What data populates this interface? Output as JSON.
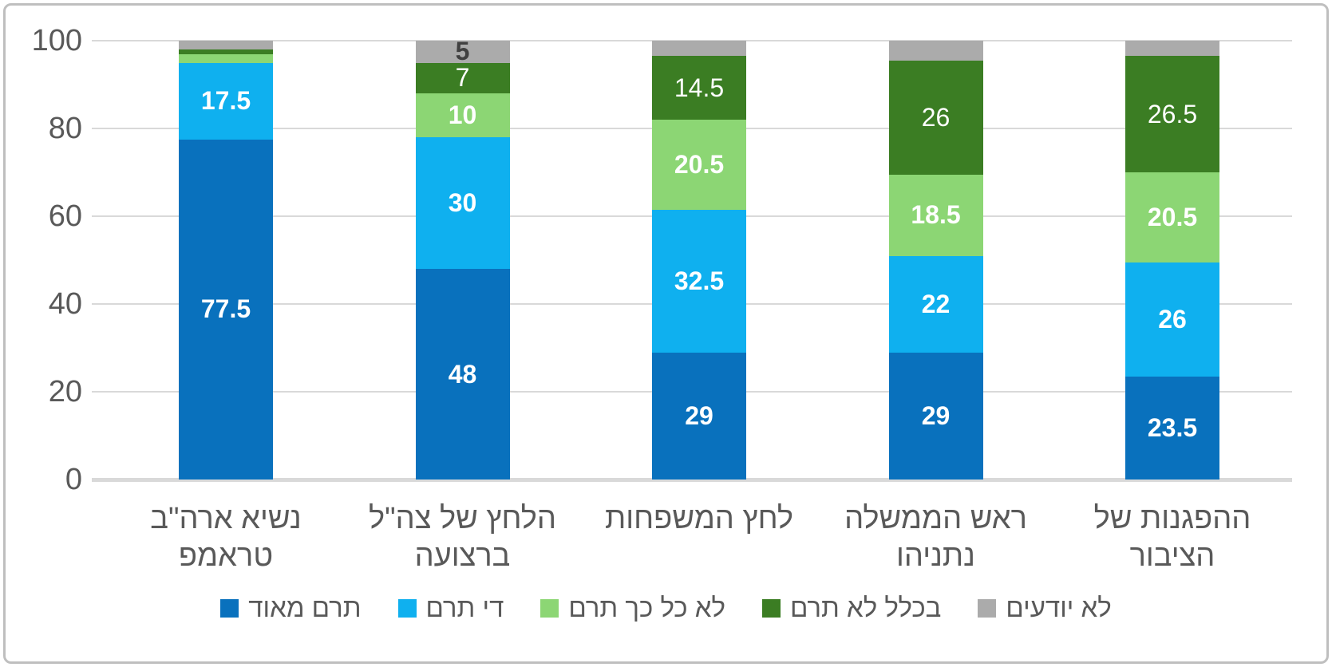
{
  "frame": {
    "background": "#FFFFFF",
    "border_color": "#BFBFBF"
  },
  "styles": {
    "grid_color": "#D9D9D9",
    "axis_text_color": "#595959",
    "value_label_color": "#FFFFFF",
    "value_label_dark_color": "#404040"
  },
  "chart_data": {
    "type": "bar",
    "stacked": true,
    "orientation": "vertical",
    "title": "",
    "xlabel": "",
    "ylabel": "",
    "ylim": [
      0,
      100
    ],
    "yticks": [
      0,
      20,
      40,
      60,
      80,
      100
    ],
    "grid": true,
    "legend_position": "bottom",
    "categories": [
      [
        "נשיא ארה\"ב",
        "טראמפ"
      ],
      [
        "הלחץ של צה\"ל",
        "ברצועה"
      ],
      [
        "לחץ המשפחות"
      ],
      [
        "ראש הממשלה",
        "נתניהו"
      ],
      [
        "ההפגנות של",
        "הציבור"
      ]
    ],
    "series": [
      {
        "name": "תרם מאוד",
        "color": "#0971BD",
        "values": [
          77.5,
          48,
          29,
          29,
          23.5
        ],
        "labels": [
          "77.5",
          "48",
          "29",
          "29",
          "23.5"
        ],
        "label_weight": "bold",
        "label_color": "#FFFFFF"
      },
      {
        "name": "די תרם",
        "color": "#0FB0EF",
        "values": [
          17.5,
          30,
          32.5,
          22,
          26
        ],
        "labels": [
          "17.5",
          "30",
          "32.5",
          "22",
          "26"
        ],
        "label_weight": "bold",
        "label_color": "#FFFFFF"
      },
      {
        "name": "לא כל כך תרם",
        "color": "#8CD674",
        "values": [
          2,
          10,
          20.5,
          18.5,
          20.5
        ],
        "labels": [
          "",
          "10",
          "20.5",
          "18.5",
          "20.5"
        ],
        "label_weight": "bold",
        "label_color": "#FFFFFF"
      },
      {
        "name": "בכלל לא תרם",
        "color": "#3B7D23",
        "values": [
          1,
          7,
          14.5,
          26,
          26.5
        ],
        "labels": [
          "",
          "7",
          "14.5",
          "26",
          "26.5"
        ],
        "label_weight": "normal",
        "label_color": "#FFFFFF"
      },
      {
        "name": "לא יודעים",
        "color": "#ABABAB",
        "values": [
          2,
          5,
          3.5,
          4.5,
          3.5
        ],
        "labels": [
          "",
          "5",
          "",
          "",
          ""
        ],
        "label_weight": "bold",
        "label_color": "#404040"
      }
    ]
  }
}
